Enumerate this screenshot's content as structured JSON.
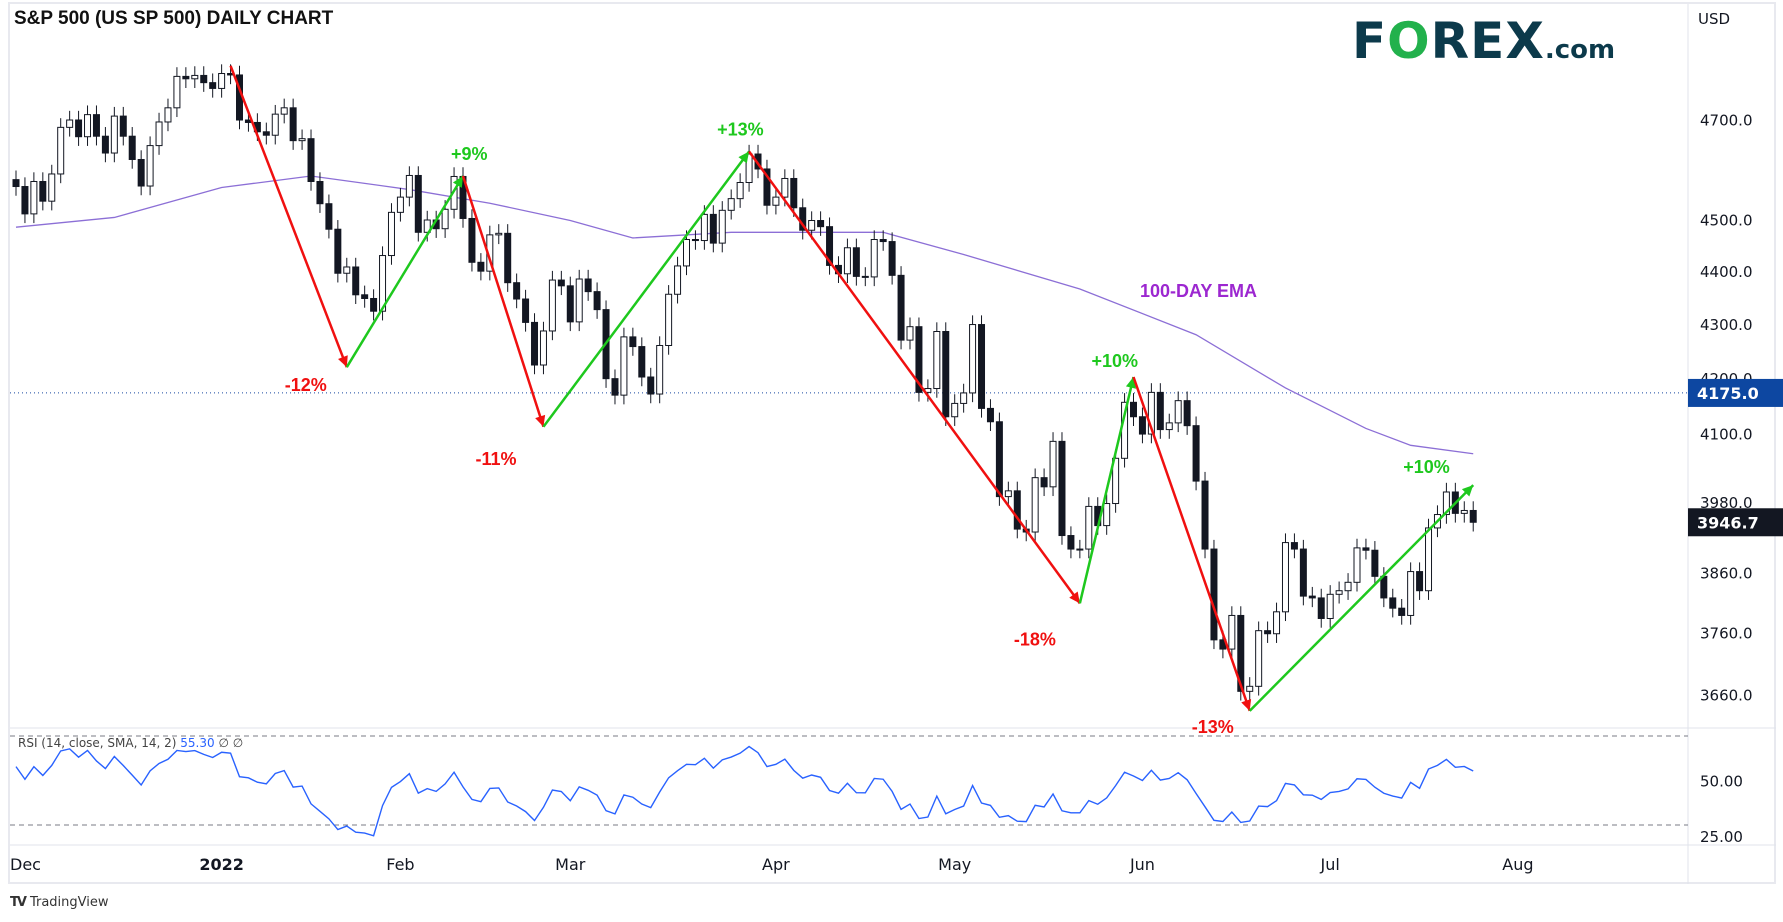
{
  "header": {
    "title": "S&P 500 (US SP 500) DAILY CHART",
    "logo_text": "FOREX.com",
    "currency": "USD"
  },
  "footer": {
    "brand": "TradingView"
  },
  "colors": {
    "bull_body": "#ffffff",
    "bear_body": "#131722",
    "candle_outline": "#131722",
    "ema": "#8c6fd6",
    "ema_label": "#9c27d0",
    "rally": "#1ec81e",
    "decline": "#f01010",
    "rsi": "#2962ff",
    "level_line": "#1848a0",
    "last_price_bg": "#131722",
    "level_bg": "#0d47a1"
  },
  "chart_data": [
    {
      "type": "candlestick",
      "title": "S&P 500 (US SP 500) DAILY CHART",
      "scale": "log",
      "ylabel": "USD",
      "y_ticks": [
        "4700.0",
        "4500.0",
        "4400.0",
        "4300.0",
        "4200.0",
        "4100.0",
        "3980.0",
        "3860.0",
        "3760.0",
        "3660.0"
      ],
      "grid": false,
      "months": [
        {
          "month": "2021-11",
          "label": "",
          "days": [
            30
          ],
          "close": [
            4567
          ]
        },
        {
          "month": "2021-12",
          "label": "Dec",
          "days": [
            1,
            2,
            3,
            6,
            7,
            8,
            9,
            10,
            13,
            14,
            15,
            16,
            17,
            20,
            21,
            22,
            23,
            27,
            28,
            29,
            30,
            31
          ],
          "close": [
            4513,
            4577,
            4538,
            4592,
            4686,
            4701,
            4667,
            4712,
            4668,
            4634,
            4709,
            4668,
            4621,
            4568,
            4649,
            4697,
            4726,
            4791,
            4786,
            4793,
            4778,
            4766
          ]
        },
        {
          "month": "2022-01",
          "label": "2022",
          "days": [
            3,
            4,
            5,
            6,
            7,
            10,
            11,
            12,
            13,
            14,
            18,
            19,
            20,
            21,
            24,
            25,
            26,
            27,
            28,
            31
          ],
          "close": [
            4797,
            4794,
            4701,
            4696,
            4677,
            4670,
            4713,
            4726,
            4659,
            4663,
            4577,
            4533,
            4483,
            4398,
            4410,
            4357,
            4350,
            4326,
            4432,
            4516
          ]
        },
        {
          "month": "2022-02",
          "label": "Feb",
          "days": [
            1,
            2,
            3,
            4,
            7,
            8,
            9,
            10,
            11,
            14,
            15,
            16,
            17,
            18,
            22,
            23,
            24,
            25,
            28
          ],
          "close": [
            4546,
            4589,
            4477,
            4501,
            4484,
            4522,
            4587,
            4504,
            4419,
            4402,
            4472,
            4475,
            4380,
            4349,
            4305,
            4226,
            4289,
            4385,
            4374
          ]
        },
        {
          "month": "2022-03",
          "label": "Mar",
          "days": [
            1,
            2,
            3,
            4,
            7,
            8,
            9,
            10,
            11,
            14,
            15,
            16,
            17,
            18,
            21,
            22,
            23,
            24,
            25,
            28,
            29,
            30,
            31
          ],
          "close": [
            4306,
            4387,
            4363,
            4329,
            4201,
            4171,
            4278,
            4260,
            4204,
            4173,
            4262,
            4358,
            4412,
            4463,
            4461,
            4512,
            4456,
            4520,
            4543,
            4575,
            4632,
            4602,
            4530
          ]
        },
        {
          "month": "2022-04",
          "label": "Apr",
          "days": [
            1,
            4,
            5,
            6,
            7,
            8,
            11,
            12,
            13,
            14,
            18,
            19,
            20,
            21,
            22,
            25,
            26,
            27,
            28,
            29
          ],
          "close": [
            4546,
            4583,
            4525,
            4481,
            4500,
            4488,
            4413,
            4397,
            4447,
            4392,
            4391,
            4463,
            4459,
            4394,
            4272,
            4297,
            4176,
            4183,
            4288,
            4132
          ]
        },
        {
          "month": "2022-05",
          "label": "May",
          "days": [
            2,
            3,
            4,
            5,
            6,
            9,
            10,
            11,
            12,
            13,
            16,
            17,
            18,
            19,
            20,
            23,
            24,
            25,
            26,
            27,
            31
          ],
          "close": [
            4156,
            4175,
            4301,
            4147,
            4123,
            3991,
            4001,
            3935,
            3930,
            4024,
            4008,
            4088,
            3924,
            3901,
            3901,
            3974,
            3941,
            3979,
            4058,
            4158,
            4132
          ]
        },
        {
          "month": "2022-06",
          "label": "Jun",
          "days": [
            1,
            2,
            3,
            6,
            7,
            8,
            9,
            10,
            13,
            14,
            15,
            16,
            17,
            21,
            22,
            23,
            24,
            27,
            28,
            29,
            30
          ],
          "close": [
            4101,
            4176,
            4109,
            4121,
            4161,
            4116,
            4018,
            3901,
            3750,
            3735,
            3790,
            3667,
            3675,
            3765,
            3760,
            3796,
            3912,
            3901,
            3822,
            3819,
            3785
          ]
        },
        {
          "month": "2022-07",
          "label": "Jul",
          "days": [
            1,
            5,
            6,
            7,
            8,
            11,
            12,
            13,
            14,
            15,
            18,
            19,
            20,
            21,
            22,
            25,
            26
          ],
          "close": [
            3825,
            3831,
            3845,
            3903,
            3899,
            3855,
            3819,
            3802,
            3790,
            3863,
            3831,
            3937,
            3960,
            3999,
            3962,
            3967,
            3946.7
          ]
        },
        {
          "month": "2022-08",
          "label": "Aug",
          "days": [],
          "close": []
        }
      ],
      "ema": {
        "label": "100-DAY EMA",
        "points": [
          [
            "2021-11-30",
            4487
          ],
          [
            "2021-12-15",
            4506
          ],
          [
            "2022-01-03",
            4565
          ],
          [
            "2022-01-18",
            4588
          ],
          [
            "2022-02-02",
            4561
          ],
          [
            "2022-02-15",
            4534
          ],
          [
            "2022-03-01",
            4500
          ],
          [
            "2022-03-10",
            4466
          ],
          [
            "2022-03-25",
            4477
          ],
          [
            "2022-04-05",
            4477
          ],
          [
            "2022-04-20",
            4477
          ],
          [
            "2022-05-03",
            4434
          ],
          [
            "2022-05-20",
            4368
          ],
          [
            "2022-06-09",
            4282
          ],
          [
            "2022-06-24",
            4184
          ],
          [
            "2022-07-08",
            4111
          ],
          [
            "2022-07-15",
            4081
          ],
          [
            "2022-07-26",
            4066
          ]
        ]
      },
      "horizontal_level": {
        "value": 4175.0,
        "label": "4175.0"
      },
      "last_price": {
        "value": 3946.7,
        "label": "3946.7"
      },
      "annotations": [
        {
          "from": [
            "2022-01-04",
            4813
          ],
          "to": [
            "2022-01-24",
            4222
          ],
          "label": "-12%",
          "direction": "down"
        },
        {
          "from": [
            "2022-01-24",
            4222
          ],
          "to": [
            "2022-02-10",
            4588
          ],
          "label": "+9%",
          "direction": "up"
        },
        {
          "from": [
            "2022-02-10",
            4588
          ],
          "to": [
            "2022-02-24",
            4114
          ],
          "label": "-11%",
          "direction": "down"
        },
        {
          "from": [
            "2022-02-24",
            4114
          ],
          "to": [
            "2022-03-29",
            4637
          ],
          "label": "+13%",
          "direction": "up"
        },
        {
          "from": [
            "2022-03-29",
            4637
          ],
          "to": [
            "2022-05-20",
            3810
          ],
          "label": "-18%",
          "direction": "down"
        },
        {
          "from": [
            "2022-05-20",
            3810
          ],
          "to": [
            "2022-05-31",
            4204
          ],
          "label": "+10%",
          "direction": "up"
        },
        {
          "from": [
            "2022-05-31",
            4204
          ],
          "to": [
            "2022-06-17",
            3636
          ],
          "label": "-13%",
          "direction": "down"
        },
        {
          "from": [
            "2022-06-17",
            3636
          ],
          "to": [
            "2022-07-26",
            4011
          ],
          "label": "+10%",
          "direction": "up"
        }
      ]
    },
    {
      "type": "line",
      "title": "RSI (14, close, SMA, 14, 2)",
      "value_label": "55.30",
      "extra_labels": [
        "∅",
        "∅"
      ],
      "levels": [
        70,
        30
      ],
      "y_ticks": [
        "50.00",
        "25.00"
      ]
    }
  ]
}
